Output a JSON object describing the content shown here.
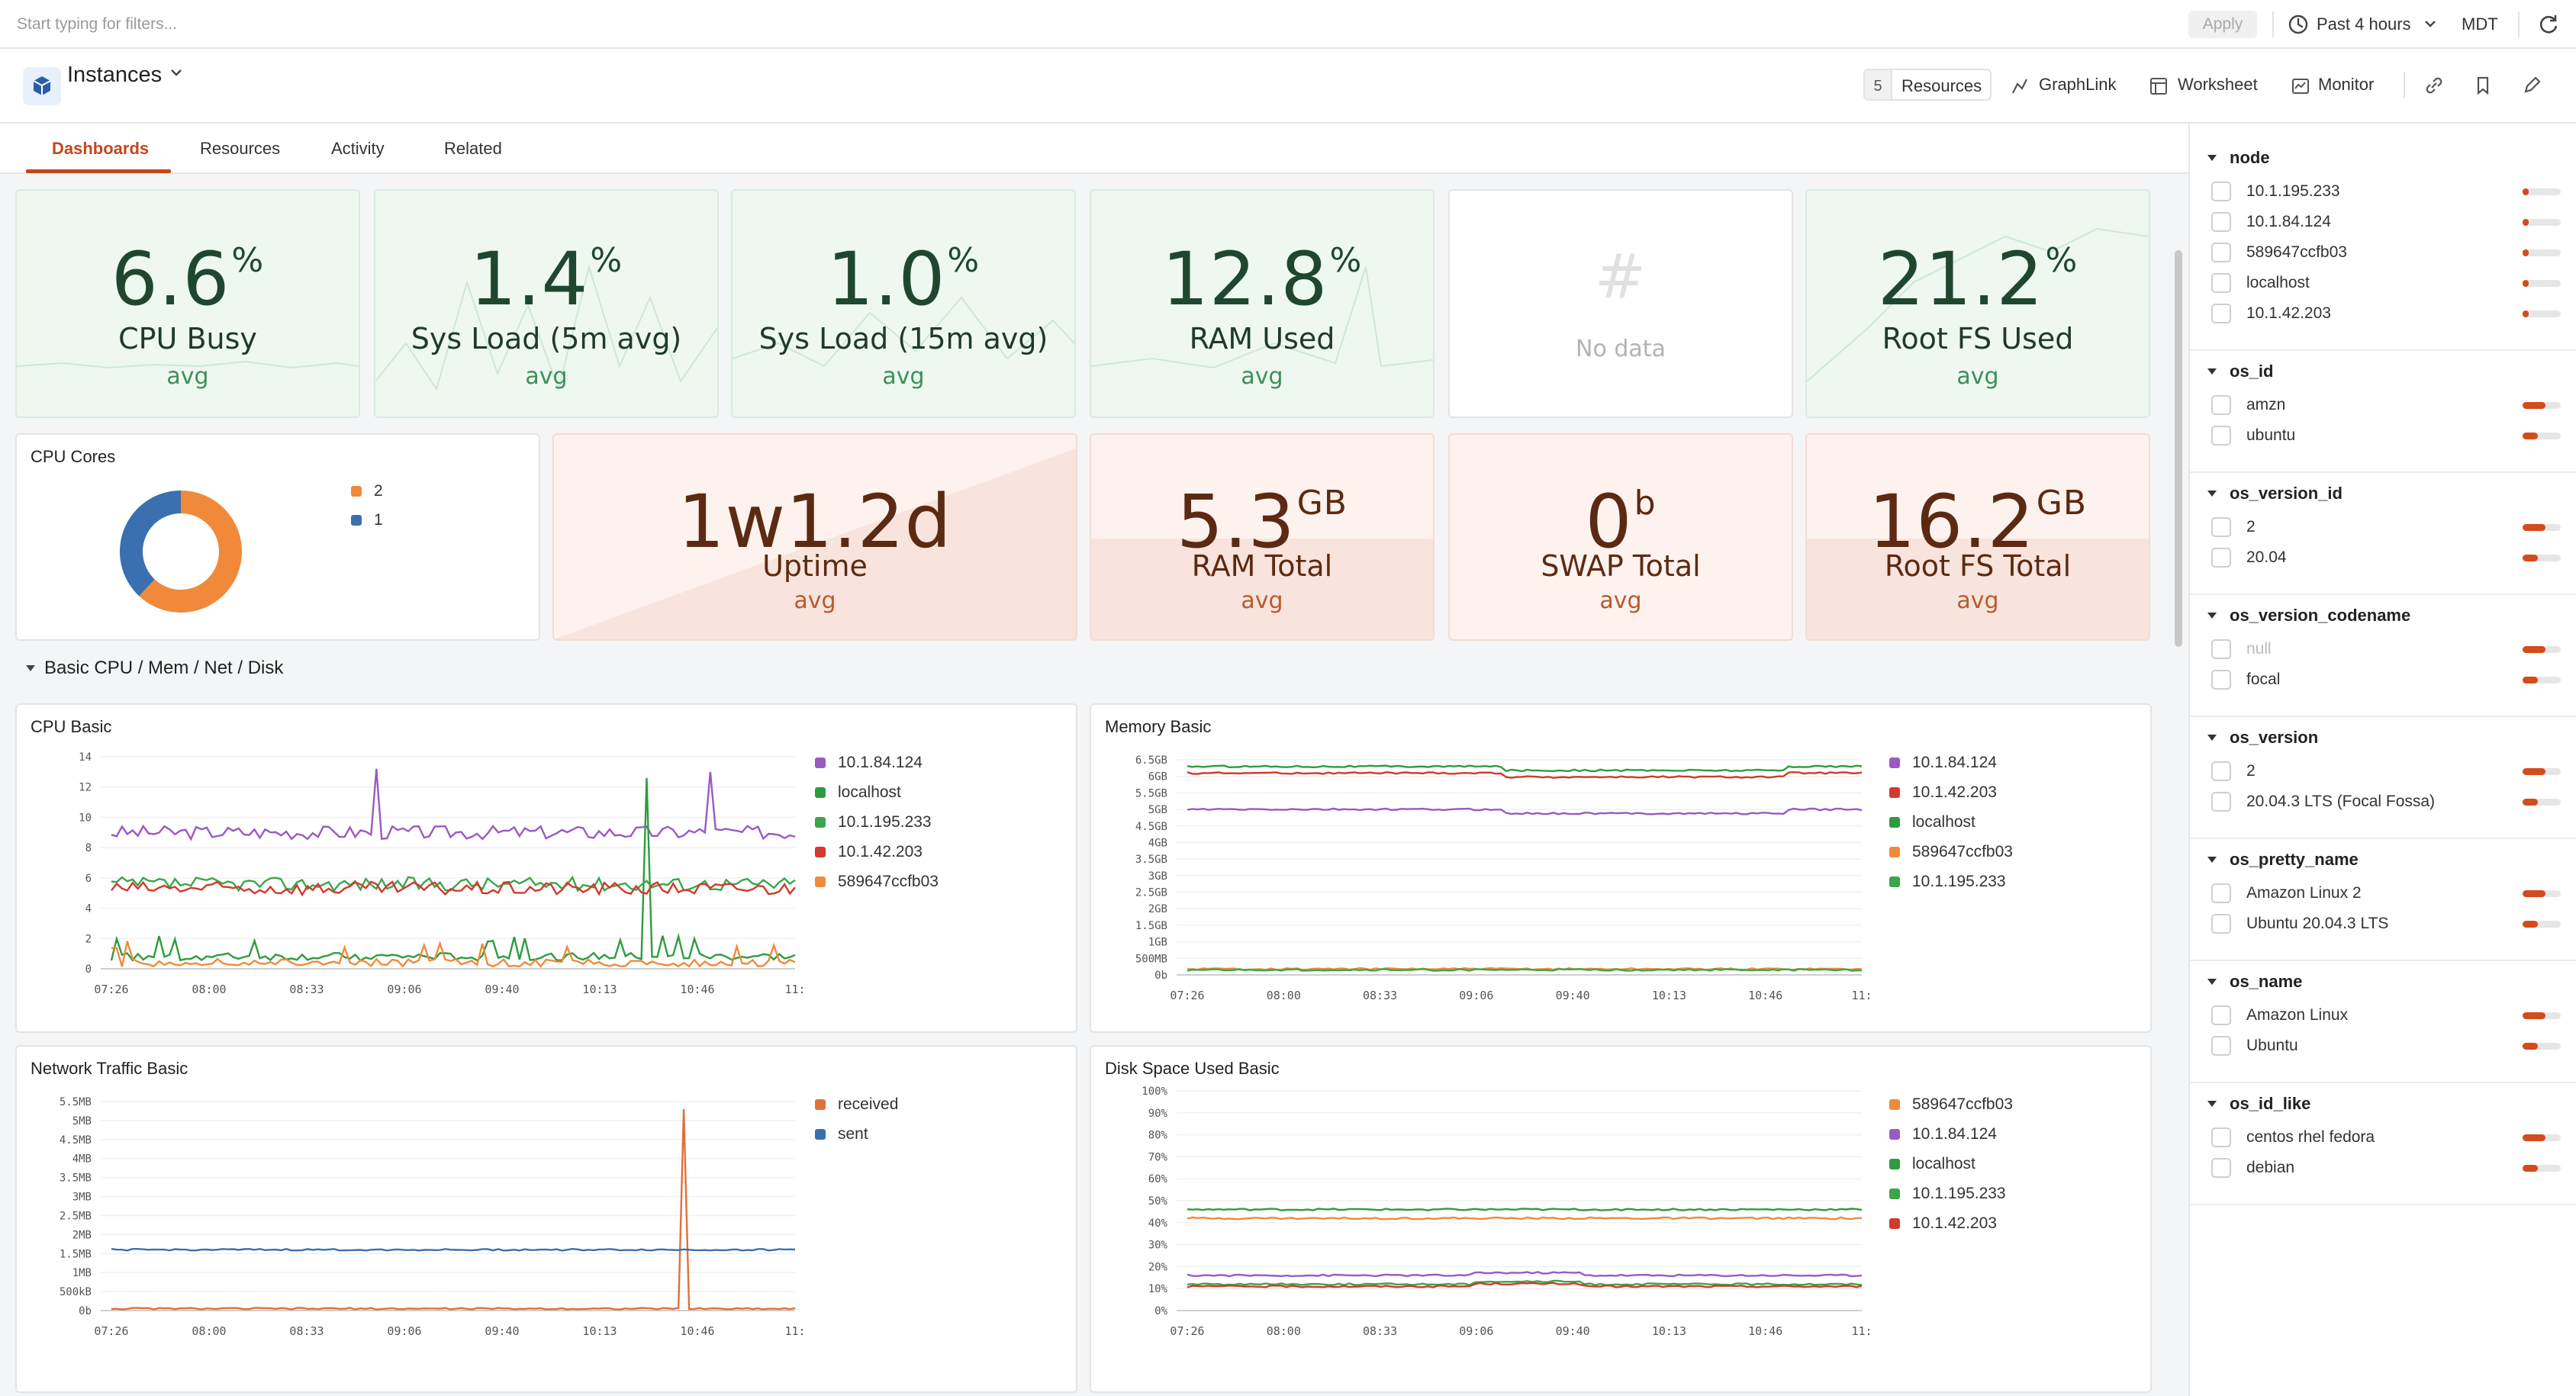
{
  "topbar": {
    "filter_placeholder": "Start typing for filters...",
    "apply_label": "Apply",
    "time_range": "Past 4 hours",
    "timezone": "MDT"
  },
  "header": {
    "title": "Instances",
    "resources_count": "5",
    "resources_label": "Resources",
    "graphlink_label": "GraphLink",
    "worksheet_label": "Worksheet",
    "monitor_label": "Monitor"
  },
  "tabs": [
    "Dashboards",
    "Resources",
    "Activity",
    "Related"
  ],
  "stats_row1": [
    {
      "value": "6.6",
      "unit": "%",
      "label": "CPU Busy",
      "sub": "avg"
    },
    {
      "value": "1.4",
      "unit": "%",
      "label": "Sys Load (5m avg)",
      "sub": "avg"
    },
    {
      "value": "1.0",
      "unit": "%",
      "label": "Sys Load (15m avg)",
      "sub": "avg"
    },
    {
      "value": "12.8",
      "unit": "%",
      "label": "RAM Used",
      "sub": "avg"
    },
    {
      "value": "#",
      "unit": "",
      "label": "No data",
      "sub": ""
    },
    {
      "value": "21.2",
      "unit": "%",
      "label": "Root FS Used",
      "sub": "avg"
    }
  ],
  "cpu_cores": {
    "title": "CPU Cores",
    "legend": [
      "2",
      "1"
    ],
    "values": [
      62,
      38
    ],
    "colors": [
      "#f08a3a",
      "#3a70b0"
    ]
  },
  "stats_row2": [
    {
      "value": "1w1.2d",
      "unit": "",
      "label": "Uptime",
      "sub": "avg"
    },
    {
      "value": "5.3",
      "unit": "GB",
      "label": "RAM Total",
      "sub": "avg"
    },
    {
      "value": "0",
      "unit": "b",
      "label": "SWAP Total",
      "sub": "avg"
    },
    {
      "value": "16.2",
      "unit": "GB",
      "label": "Root FS Total",
      "sub": "avg"
    }
  ],
  "section_title": "Basic CPU / Mem / Net / Disk",
  "x_ticks": [
    "07:26",
    "08:00",
    "08:33",
    "09:06",
    "09:40",
    "10:13",
    "10:46",
    "11:"
  ],
  "chart_data": [
    {
      "type": "line",
      "title": "CPU Basic",
      "ylim": [
        0,
        14
      ],
      "y_ticks": [
        "0",
        "2",
        "4",
        "6",
        "8",
        "10",
        "12",
        "14"
      ],
      "series": [
        {
          "name": "10.1.84.124",
          "color": "#9b59c4",
          "base": 9.0,
          "spikes": [
            [
              50,
              13.2
            ],
            [
              113,
              13.0
            ]
          ]
        },
        {
          "name": "localhost",
          "color": "#2e9c3e",
          "base": 0.8,
          "spikes": [
            [
              101,
              12.6
            ],
            [
              102,
              0.8
            ]
          ]
        },
        {
          "name": "10.1.195.233",
          "color": "#3aa64a",
          "base": 5.6,
          "spikes": []
        },
        {
          "name": "10.1.42.203",
          "color": "#d13a2c",
          "base": 5.3,
          "spikes": []
        },
        {
          "name": "589647ccfb03",
          "color": "#f08a3a",
          "base": 0.4,
          "spikes": []
        }
      ]
    },
    {
      "type": "line",
      "title": "Memory Basic",
      "ylim": [
        0,
        6.5
      ],
      "y_ticks": [
        "0b",
        "500MB",
        "1GB",
        "1.5GB",
        "2GB",
        "2.5GB",
        "3GB",
        "3.5GB",
        "4GB",
        "4.5GB",
        "5GB",
        "5.5GB",
        "6GB",
        "6.5GB"
      ],
      "series": [
        {
          "name": "10.1.84.124",
          "color": "#9b59c4",
          "base": 5.0
        },
        {
          "name": "10.1.42.203",
          "color": "#d13a2c",
          "base": 6.1
        },
        {
          "name": "localhost",
          "color": "#2e9c3e",
          "base": 6.3
        },
        {
          "name": "589647ccfb03",
          "color": "#f08a3a",
          "base": 0.18
        },
        {
          "name": "10.1.195.233",
          "color": "#3aa64a",
          "base": 0.15
        }
      ]
    },
    {
      "type": "line",
      "title": "Network Traffic Basic",
      "ylim": [
        0,
        5.5
      ],
      "y_ticks": [
        "0b",
        "500kB",
        "1MB",
        "1.5MB",
        "2MB",
        "2.5MB",
        "3MB",
        "3.5MB",
        "4MB",
        "4.5MB",
        "5MB",
        "5.5MB"
      ],
      "series": [
        {
          "name": "received",
          "color": "#e0703a",
          "base": 0.05,
          "spikes": [
            [
              0.83,
              5.3
            ]
          ]
        },
        {
          "name": "sent",
          "color": "#3a70b0",
          "base": 1.6
        }
      ]
    },
    {
      "type": "line",
      "title": "Disk Space Used Basic",
      "ylim": [
        0,
        100
      ],
      "y_ticks": [
        "0%",
        "10%",
        "20%",
        "30%",
        "40%",
        "50%",
        "60%",
        "70%",
        "80%",
        "90%",
        "100%"
      ],
      "series": [
        {
          "name": "589647ccfb03",
          "color": "#f08a3a",
          "base": 42
        },
        {
          "name": "10.1.84.124",
          "color": "#9b59c4",
          "base": 16
        },
        {
          "name": "localhost",
          "color": "#2e9c3e",
          "base": 46
        },
        {
          "name": "10.1.195.233",
          "color": "#3aa64a",
          "base": 12
        },
        {
          "name": "10.1.42.203",
          "color": "#d13a2c",
          "base": 11
        }
      ]
    }
  ],
  "sidebar": [
    {
      "name": "node",
      "items": [
        "10.1.195.233",
        "10.1.84.124",
        "589647ccfb03",
        "localhost",
        "10.1.42.203"
      ],
      "fills": [
        0.15,
        0.15,
        0.15,
        0.15,
        0.15
      ]
    },
    {
      "name": "os_id",
      "items": [
        "amzn",
        "ubuntu"
      ],
      "fills": [
        0.6,
        0.4
      ]
    },
    {
      "name": "os_version_id",
      "items": [
        "2",
        "20.04"
      ],
      "fills": [
        0.6,
        0.4
      ]
    },
    {
      "name": "os_version_codename",
      "items": [
        "null",
        "focal"
      ],
      "fills": [
        0.6,
        0.4
      ]
    },
    {
      "name": "os_version",
      "items": [
        "2",
        "20.04.3 LTS (Focal Fossa)"
      ],
      "fills": [
        0.6,
        0.4
      ]
    },
    {
      "name": "os_pretty_name",
      "items": [
        "Amazon Linux 2",
        "Ubuntu 20.04.3 LTS"
      ],
      "fills": [
        0.6,
        0.4
      ]
    },
    {
      "name": "os_name",
      "items": [
        "Amazon Linux",
        "Ubuntu"
      ],
      "fills": [
        0.6,
        0.4
      ]
    },
    {
      "name": "os_id_like",
      "items": [
        "centos rhel fedora",
        "debian"
      ],
      "fills": [
        0.6,
        0.4
      ]
    }
  ]
}
